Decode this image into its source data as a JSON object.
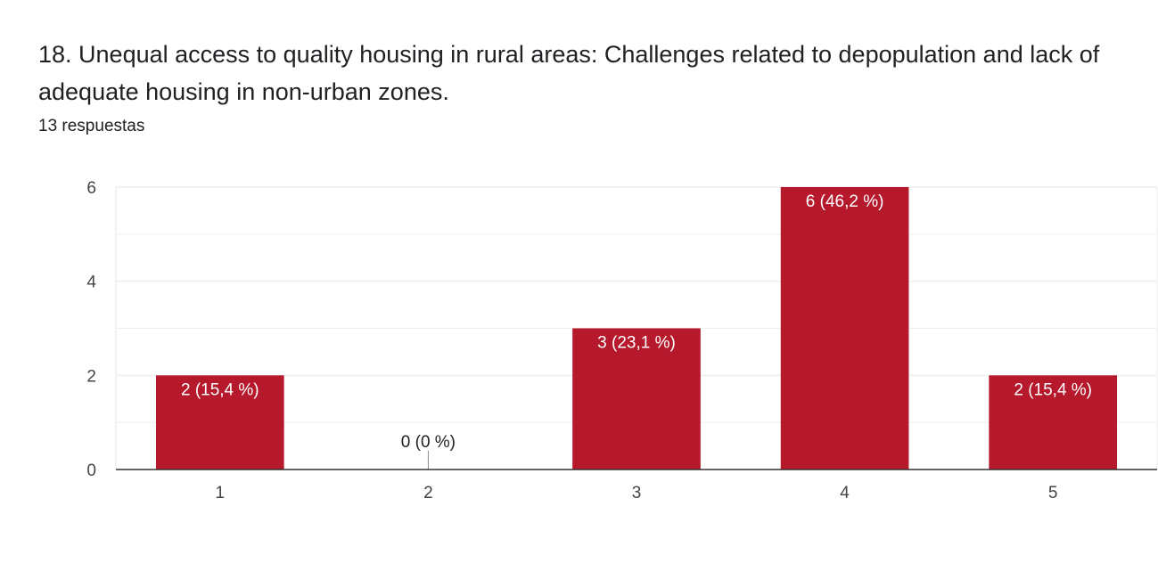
{
  "question": {
    "title": "18.  Unequal access to quality housing in rural areas: Challenges related to depopulation and lack of adequate housing in non-urban zones.",
    "response_count": "13 respuestas"
  },
  "colors": {
    "bar": "#b5192b",
    "gridline": "#eeeeee",
    "axis": "#333333",
    "label_inside": "#ffffff",
    "label_outside": "#202124",
    "tick_text": "#444444"
  },
  "chart_data": {
    "type": "bar",
    "title": "",
    "xlabel": "",
    "ylabel": "",
    "categories": [
      "1",
      "2",
      "3",
      "4",
      "5"
    ],
    "values": [
      2,
      0,
      3,
      6,
      2
    ],
    "data_labels": [
      "2 (15,4 %)",
      "0 (0 %)",
      "3 (23,1 %)",
      "6 (46,2 %)",
      "2 (15,4 %)"
    ],
    "ylim": [
      0,
      6
    ],
    "yticks": [
      "0",
      "2",
      "4",
      "6"
    ],
    "grid": true,
    "legend": "none"
  }
}
